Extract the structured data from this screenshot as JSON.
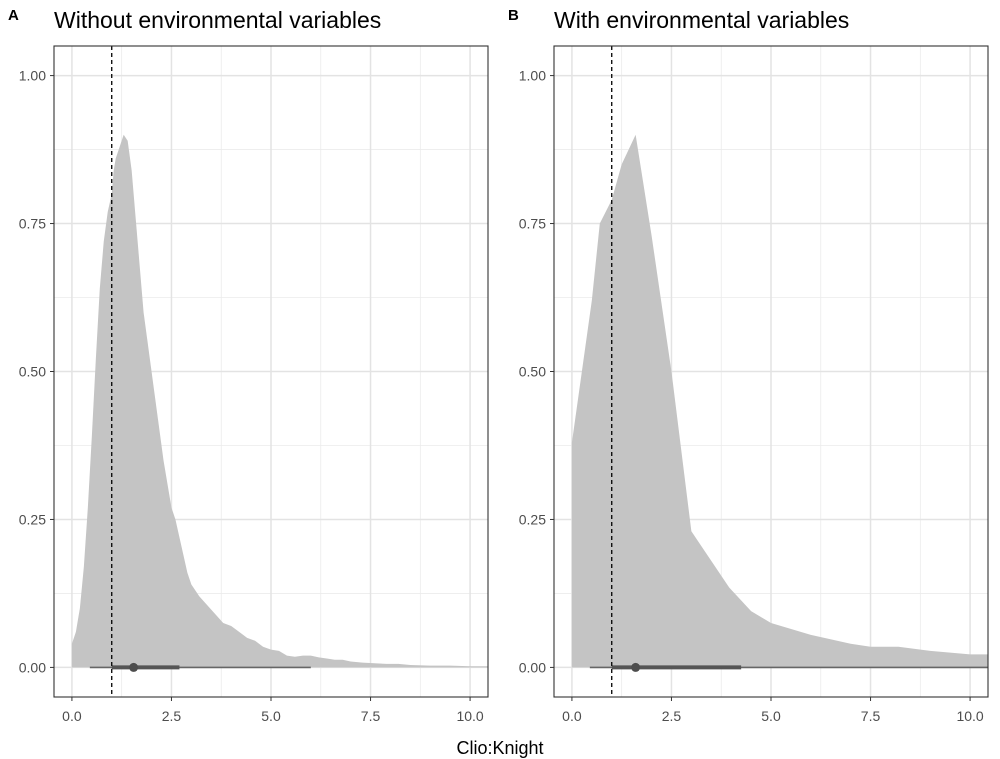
{
  "chart_data": {
    "type": "area",
    "xlabel": "Clio:Knight",
    "shared_axes": {
      "xlim": [
        -0.45,
        10.45
      ],
      "ylim": [
        -0.05,
        1.05
      ],
      "x_ticks": [
        0.0,
        2.5,
        5.0,
        7.5,
        10.0
      ],
      "x_tick_labels": [
        "0.0",
        "2.5",
        "5.0",
        "7.5",
        "10.0"
      ],
      "y_ticks": [
        0.0,
        0.25,
        0.5,
        0.75,
        1.0
      ],
      "y_tick_labels": [
        "0.00",
        "0.25",
        "0.50",
        "0.75",
        "1.00"
      ],
      "grid": true,
      "reference_line_x": 1.0
    },
    "panels": [
      {
        "tag": "A",
        "title": "Without environmental variables",
        "density": [
          [
            0.0,
            0.04
          ],
          [
            0.1,
            0.06
          ],
          [
            0.2,
            0.1
          ],
          [
            0.3,
            0.17
          ],
          [
            0.4,
            0.27
          ],
          [
            0.5,
            0.39
          ],
          [
            0.6,
            0.52
          ],
          [
            0.7,
            0.64
          ],
          [
            0.8,
            0.72
          ],
          [
            0.9,
            0.77
          ],
          [
            1.0,
            0.8
          ],
          [
            1.05,
            0.84
          ],
          [
            1.1,
            0.86
          ],
          [
            1.2,
            0.88
          ],
          [
            1.3,
            0.9
          ],
          [
            1.4,
            0.89
          ],
          [
            1.5,
            0.84
          ],
          [
            1.6,
            0.76
          ],
          [
            1.7,
            0.68
          ],
          [
            1.8,
            0.6
          ],
          [
            1.9,
            0.55
          ],
          [
            2.0,
            0.5
          ],
          [
            2.1,
            0.45
          ],
          [
            2.2,
            0.4
          ],
          [
            2.3,
            0.35
          ],
          [
            2.4,
            0.31
          ],
          [
            2.5,
            0.27
          ],
          [
            2.6,
            0.25
          ],
          [
            2.7,
            0.22
          ],
          [
            2.8,
            0.19
          ],
          [
            2.9,
            0.16
          ],
          [
            3.0,
            0.14
          ],
          [
            3.2,
            0.12
          ],
          [
            3.4,
            0.105
          ],
          [
            3.6,
            0.09
          ],
          [
            3.8,
            0.075
          ],
          [
            4.0,
            0.07
          ],
          [
            4.2,
            0.06
          ],
          [
            4.4,
            0.05
          ],
          [
            4.6,
            0.045
          ],
          [
            4.8,
            0.035
          ],
          [
            5.0,
            0.03
          ],
          [
            5.2,
            0.028
          ],
          [
            5.4,
            0.02
          ],
          [
            5.6,
            0.018
          ],
          [
            5.8,
            0.02
          ],
          [
            6.0,
            0.02
          ],
          [
            6.2,
            0.017
          ],
          [
            6.4,
            0.015
          ],
          [
            6.6,
            0.013
          ],
          [
            6.8,
            0.013
          ],
          [
            7.0,
            0.01
          ],
          [
            7.3,
            0.008
          ],
          [
            7.6,
            0.007
          ],
          [
            7.9,
            0.006
          ],
          [
            8.2,
            0.006
          ],
          [
            8.5,
            0.004
          ],
          [
            9.0,
            0.003
          ],
          [
            9.5,
            0.003
          ],
          [
            10.0,
            0.002
          ],
          [
            10.5,
            0.002
          ]
        ],
        "point_estimate": 1.55,
        "interval_inner": [
          1.0,
          2.7
        ],
        "interval_outer": [
          0.45,
          6.0
        ]
      },
      {
        "tag": "B",
        "title": "With environmental variables",
        "density": [
          [
            0.0,
            0.38
          ],
          [
            0.25,
            0.5
          ],
          [
            0.5,
            0.62
          ],
          [
            0.7,
            0.75
          ],
          [
            1.0,
            0.79
          ],
          [
            1.25,
            0.85
          ],
          [
            1.6,
            0.9
          ],
          [
            2.0,
            0.73
          ],
          [
            2.5,
            0.5
          ],
          [
            3.0,
            0.23
          ],
          [
            3.5,
            0.18
          ],
          [
            3.95,
            0.135
          ],
          [
            4.5,
            0.095
          ],
          [
            5.0,
            0.075
          ],
          [
            6.0,
            0.055
          ],
          [
            7.0,
            0.04
          ],
          [
            7.5,
            0.035
          ],
          [
            8.2,
            0.035
          ],
          [
            9.0,
            0.028
          ],
          [
            10.0,
            0.022
          ],
          [
            10.5,
            0.022
          ]
        ],
        "point_estimate": 1.6,
        "interval_inner": [
          1.0,
          4.25
        ],
        "interval_outer": [
          0.45,
          10.5
        ]
      }
    ]
  }
}
